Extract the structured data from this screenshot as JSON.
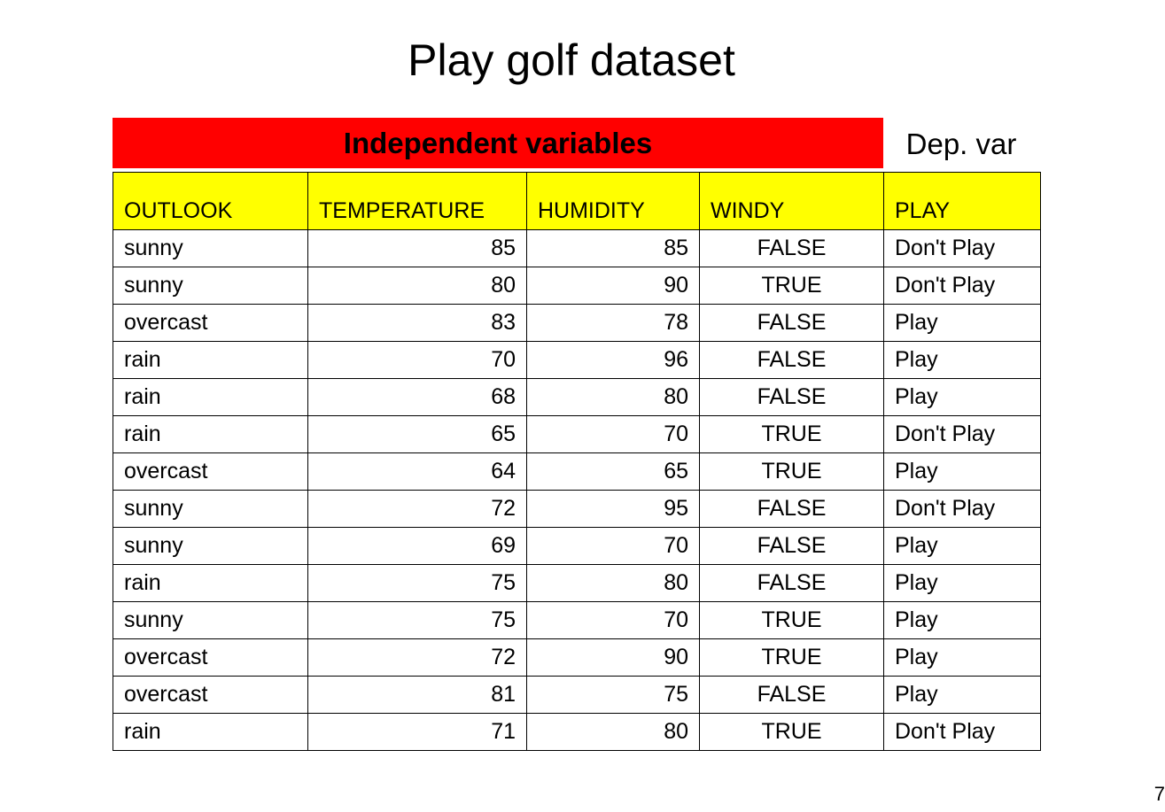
{
  "title": "Play golf dataset",
  "banner": {
    "independent": "Independent variables",
    "dependent": "Dep. var"
  },
  "colors": {
    "independent_banner": "#ff0000",
    "header_row": "#ffff00"
  },
  "table": {
    "headers": [
      "OUTLOOK",
      "TEMPERATURE",
      "HUMIDITY",
      "WINDY",
      "PLAY"
    ],
    "rows": [
      [
        "sunny",
        "85",
        "85",
        "FALSE",
        "Don't Play"
      ],
      [
        "sunny",
        "80",
        "90",
        "TRUE",
        "Don't Play"
      ],
      [
        "overcast",
        "83",
        "78",
        "FALSE",
        "Play"
      ],
      [
        "rain",
        "70",
        "96",
        "FALSE",
        "Play"
      ],
      [
        "rain",
        "68",
        "80",
        "FALSE",
        "Play"
      ],
      [
        "rain",
        "65",
        "70",
        "TRUE",
        "Don't Play"
      ],
      [
        "overcast",
        "64",
        "65",
        "TRUE",
        "Play"
      ],
      [
        "sunny",
        "72",
        "95",
        "FALSE",
        "Don't Play"
      ],
      [
        "sunny",
        "69",
        "70",
        "FALSE",
        "Play"
      ],
      [
        "rain",
        "75",
        "80",
        "FALSE",
        "Play"
      ],
      [
        "sunny",
        "75",
        "70",
        "TRUE",
        "Play"
      ],
      [
        "overcast",
        "72",
        "90",
        "TRUE",
        "Play"
      ],
      [
        "overcast",
        "81",
        "75",
        "FALSE",
        "Play"
      ],
      [
        "rain",
        "71",
        "80",
        "TRUE",
        "Don't Play"
      ]
    ]
  },
  "page_number": "7"
}
